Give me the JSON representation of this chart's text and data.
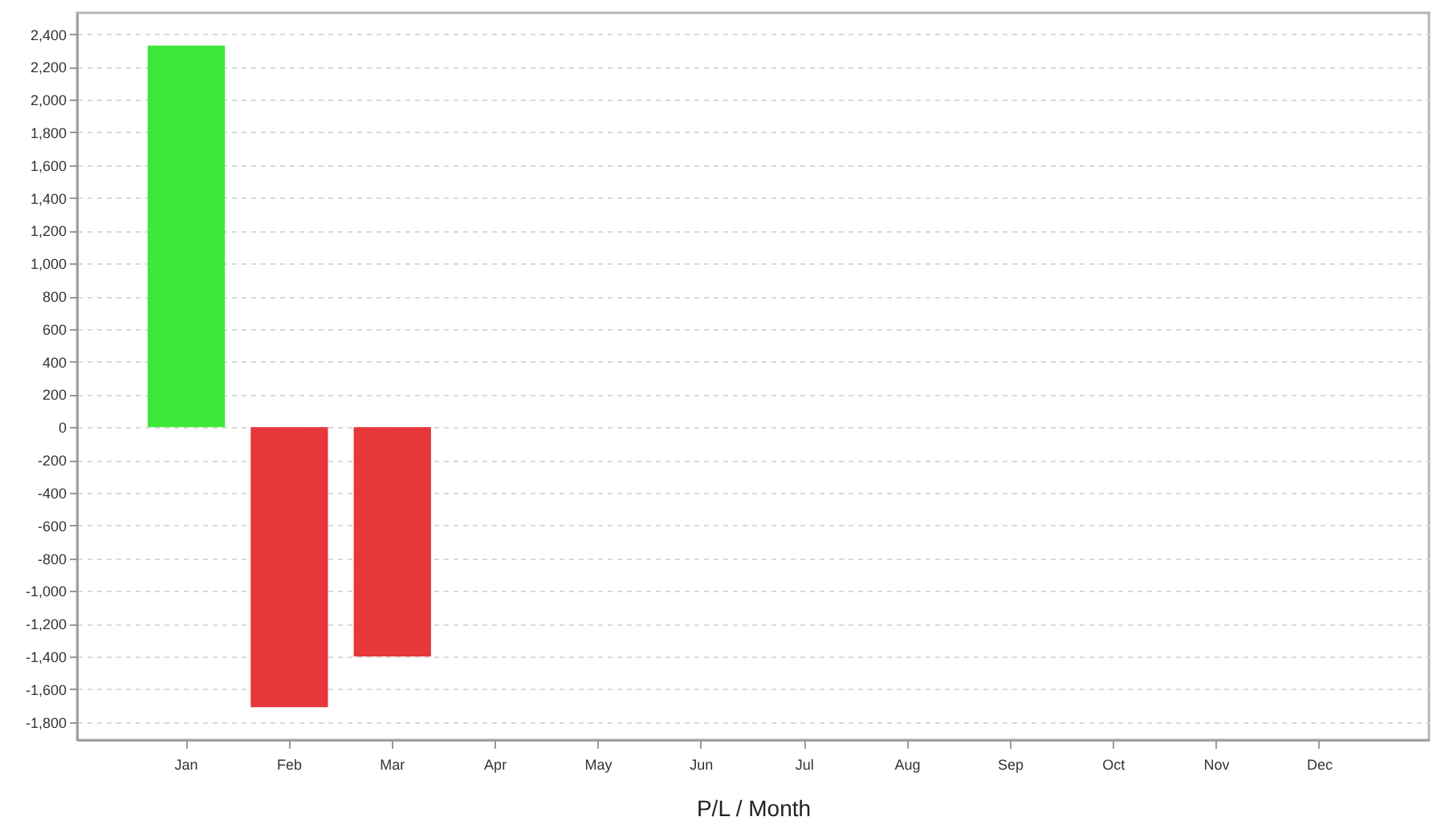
{
  "chart_data": {
    "type": "bar",
    "xlabel": "P/L / Month",
    "categories": [
      "Jan",
      "Feb",
      "Mar",
      "Apr",
      "May",
      "Jun",
      "Jul",
      "Aug",
      "Sep",
      "Oct",
      "Nov",
      "Dec"
    ],
    "values": [
      2330,
      -1710,
      -1400,
      null,
      null,
      null,
      null,
      null,
      null,
      null,
      null,
      null
    ],
    "colors": [
      "#3ee83a",
      "#e6373a",
      "#e6373a",
      null,
      null,
      null,
      null,
      null,
      null,
      null,
      null,
      null
    ],
    "ylim": [
      -1910,
      2530
    ],
    "yticks": [
      {
        "value": -1800,
        "label": "-1,800"
      },
      {
        "value": -1600,
        "label": "-1,600"
      },
      {
        "value": -1400,
        "label": "-1,400"
      },
      {
        "value": -1200,
        "label": "-1,200"
      },
      {
        "value": -1000,
        "label": "-1,000"
      },
      -800,
      -600,
      -400,
      -200,
      0,
      200,
      400,
      600,
      800,
      {
        "value": 1000,
        "label": "1,000"
      },
      {
        "value": 1200,
        "label": "1,200"
      },
      {
        "value": 1400,
        "label": "1,400"
      },
      {
        "value": 1600,
        "label": "1,600"
      },
      {
        "value": 1800,
        "label": "1,800"
      },
      {
        "value": 2000,
        "label": "2,000"
      },
      {
        "value": 2200,
        "label": "2,200"
      },
      {
        "value": 2400,
        "label": "2,400"
      }
    ],
    "grid": "y"
  }
}
